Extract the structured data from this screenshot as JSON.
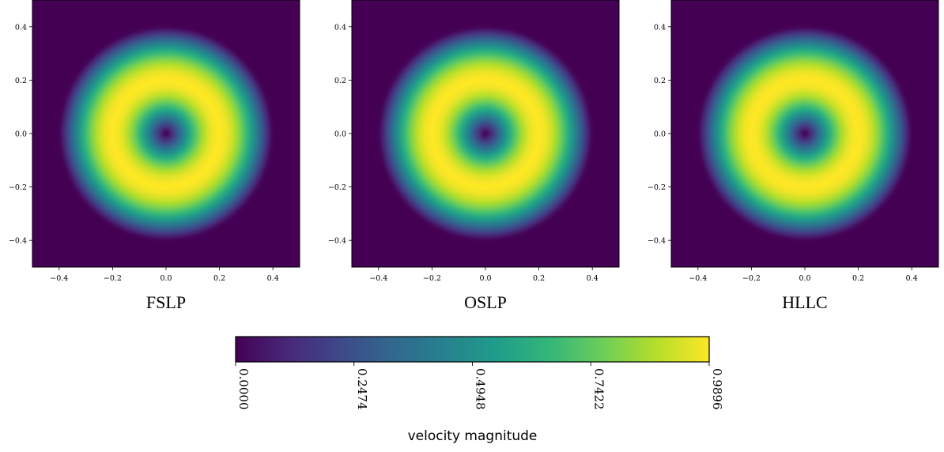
{
  "chart_data": [
    {
      "type": "heatmap",
      "title": "FSLP",
      "xlim": [
        -0.5,
        0.5
      ],
      "ylim": [
        -0.5,
        0.5
      ],
      "xticks": [
        "−0.4",
        "−0.2",
        "0.0",
        "0.2",
        "0.4"
      ],
      "yticks": [
        "0.4",
        "0.2",
        "0.0",
        "−0.2",
        "−0.4"
      ],
      "xtick_values": [
        -0.4,
        -0.2,
        0.0,
        0.2,
        0.4
      ],
      "ytick_values": [
        0.4,
        0.2,
        0.0,
        -0.2,
        -0.4
      ],
      "field": "velocity magnitude (radial ring)",
      "ring_peak_radius": 0.2,
      "ring_outer_radius": 0.4,
      "peak_value": 0.9896,
      "ring_halfwidth_in": 0.2,
      "ring_halfwidth_out": 0.2,
      "bright_line": true
    },
    {
      "type": "heatmap",
      "title": "OSLP",
      "xlim": [
        -0.5,
        0.5
      ],
      "ylim": [
        -0.5,
        0.5
      ],
      "xticks": [
        "−0.4",
        "−0.2",
        "0.0",
        "0.2",
        "0.4"
      ],
      "yticks": [
        "0.4",
        "0.2",
        "0.0",
        "−0.2",
        "−0.4"
      ],
      "xtick_values": [
        -0.4,
        -0.2,
        0.0,
        0.2,
        0.4
      ],
      "ytick_values": [
        0.4,
        0.2,
        0.0,
        -0.2,
        -0.4
      ],
      "field": "velocity magnitude (radial ring)",
      "ring_peak_radius": 0.2,
      "ring_outer_radius": 0.4,
      "peak_value": 0.9896,
      "ring_halfwidth_in": 0.2,
      "ring_halfwidth_out": 0.2,
      "bright_line": true
    },
    {
      "type": "heatmap",
      "title": "HLLC",
      "xlim": [
        -0.5,
        0.5
      ],
      "ylim": [
        -0.5,
        0.5
      ],
      "xticks": [
        "−0.4",
        "−0.2",
        "0.0",
        "0.2",
        "0.4"
      ],
      "yticks": [
        "0.4",
        "0.2",
        "0.0",
        "−0.2",
        "−0.4"
      ],
      "xtick_values": [
        -0.4,
        -0.2,
        0.0,
        0.2,
        0.4
      ],
      "ytick_values": [
        0.4,
        0.2,
        0.0,
        -0.2,
        -0.4
      ],
      "field": "velocity magnitude (radial ring)",
      "ring_peak_radius": 0.2,
      "ring_outer_radius": 0.4,
      "peak_value": 0.9896,
      "ring_halfwidth_in": 0.2,
      "ring_halfwidth_out": 0.2,
      "bright_line": false
    }
  ],
  "colorbar": {
    "label": "velocity magnitude",
    "colormap": "viridis",
    "range": [
      0.0,
      0.9896
    ],
    "ticks": [
      "0.0000",
      "0.2474",
      "0.4948",
      "0.7422",
      "0.9896"
    ],
    "tick_values": [
      0.0,
      0.2474,
      0.4948,
      0.7422,
      0.9896
    ]
  },
  "colors": {
    "viridis_stops": [
      "#440154",
      "#482878",
      "#3e4989",
      "#31688e",
      "#26828e",
      "#1f9e89",
      "#35b779",
      "#6ece58",
      "#b5de2b",
      "#fde725"
    ]
  }
}
